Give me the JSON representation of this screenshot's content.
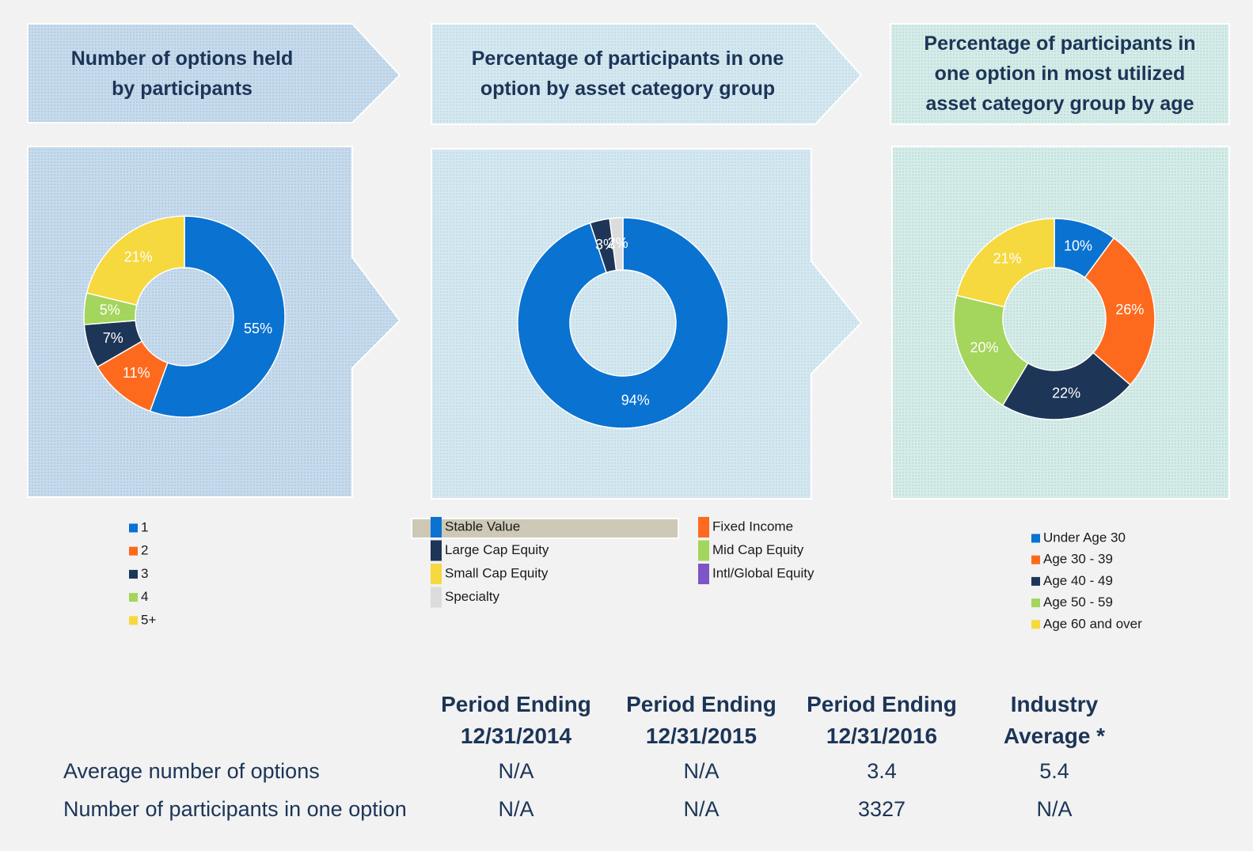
{
  "chart_data": [
    {
      "type": "donut",
      "title": "Number of options held\nby participants",
      "categories": [
        "1",
        "2",
        "3",
        "4",
        "5+"
      ],
      "values": [
        55,
        11,
        7,
        5,
        21
      ],
      "value_labels": [
        "55%",
        "11%",
        "7%",
        "5%",
        "21%"
      ],
      "colors": [
        "#0a72d1",
        "#fd6a1e",
        "#1d3557",
        "#a4d55c",
        "#f6d83f"
      ]
    },
    {
      "type": "donut",
      "title": "Percentage of participants in one\noption by asset category group",
      "categories": [
        "Stable Value",
        "Fixed Income",
        "Large Cap Equity",
        "Mid Cap Equity",
        "Small Cap Equity",
        "Intl/Global Equity",
        "Specialty"
      ],
      "values": [
        94,
        0,
        3,
        0,
        0,
        0,
        2
      ],
      "value_labels": [
        "94%",
        null,
        "3%",
        null,
        null,
        null,
        "2%"
      ],
      "colors": [
        "#0a72d1",
        "#fd6a1e",
        "#1d3557",
        "#a4d55c",
        "#f6d83f",
        "#7d55c7",
        "#dcdcdc"
      ]
    },
    {
      "type": "donut",
      "title": "Percentage of participants in\none option in most utilized\nasset category group by age",
      "categories": [
        "Under Age 30",
        "Age 30 - 39",
        "Age 40 - 49",
        "Age 50 - 59",
        "Age 60 and over"
      ],
      "values": [
        10,
        26,
        22,
        20,
        21
      ],
      "value_labels": [
        "10%",
        "26%",
        "22%",
        "20%",
        "21%"
      ],
      "colors": [
        "#0a72d1",
        "#fd6a1e",
        "#1d3557",
        "#a4d55c",
        "#f6d83f"
      ]
    }
  ],
  "table": {
    "header": [
      "Period Ending\n12/31/2014",
      "Period Ending\n12/31/2015",
      "Period Ending\n12/31/2016",
      "Industry\nAverage *"
    ],
    "rows": [
      [
        "Average number of options",
        "N/A",
        "N/A",
        3.4,
        5.4
      ],
      [
        "Number of participants in one option",
        "N/A",
        "N/A",
        3327,
        "N/A"
      ]
    ]
  }
}
